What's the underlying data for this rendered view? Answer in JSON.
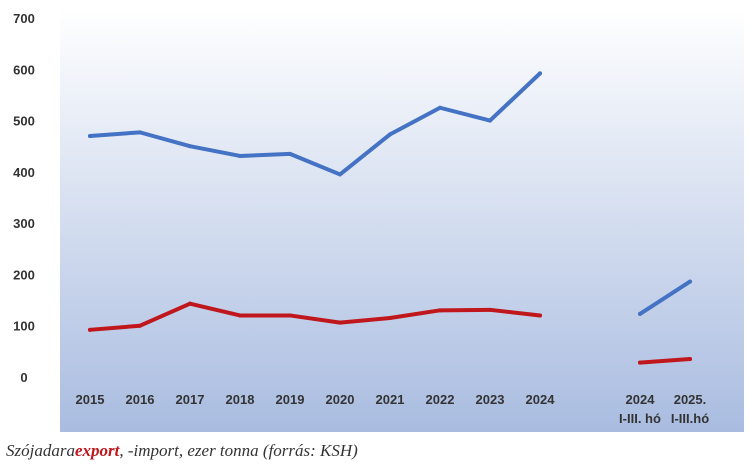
{
  "chart_data": {
    "type": "line",
    "categories": [
      "2015",
      "2016",
      "2017",
      "2018",
      "2019",
      "2020",
      "2021",
      "2022",
      "2023",
      "2024",
      "",
      "2024",
      "2025."
    ],
    "category_sublabels": [
      "",
      "",
      "",
      "",
      "",
      "",
      "",
      "",
      "",
      "",
      "",
      "I-III. hó",
      "I-III.hó"
    ],
    "series": [
      {
        "color": "#4472c4",
        "values": [
          470,
          477,
          450,
          431,
          435,
          395,
          473,
          525,
          500,
          592,
          null,
          123,
          186
        ]
      },
      {
        "color": "#c0171d",
        "values": [
          92,
          100,
          143,
          120,
          120,
          106,
          115,
          130,
          131,
          120,
          null,
          28,
          35
        ]
      }
    ],
    "ylim": [
      0,
      700
    ],
    "yticks": [
      "0",
      "100",
      "200",
      "300",
      "400",
      "500",
      "600",
      "700"
    ],
    "grid": false,
    "legend": "none",
    "background": [
      "#ffffff",
      "#a9bce0"
    ]
  },
  "caption": {
    "before": "Szójadara",
    "highlight": "export",
    "after": ", -import, ezer tonna (forrás: KSH)"
  }
}
